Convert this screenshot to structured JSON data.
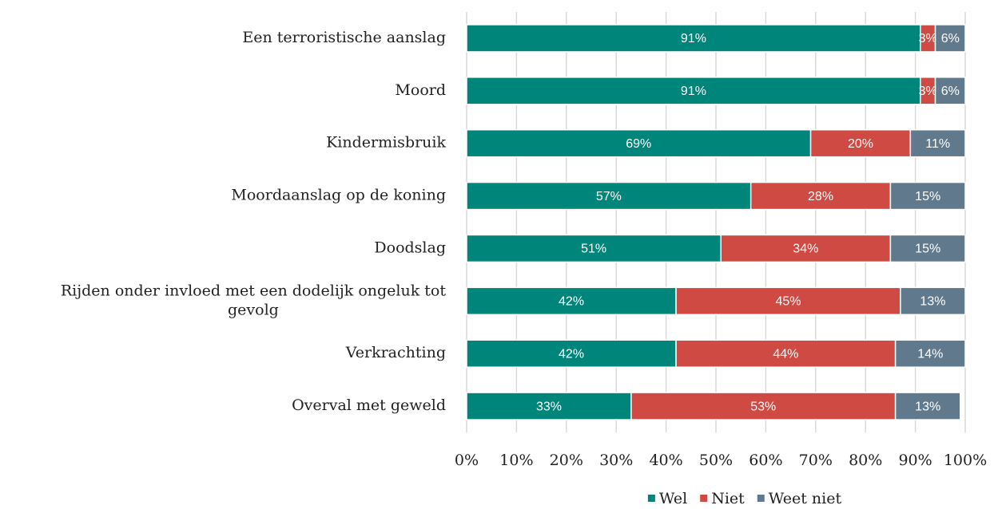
{
  "chart_data": {
    "type": "stacked-barh",
    "categories": [
      "Een terroristische aanslag",
      "Moord",
      "Kindermisbruik",
      "Moordaanslag op de koning",
      "Doodslag",
      "Rijden onder invloed met een dodelijk ongeluk tot gevolg",
      "Verkrachting",
      "Overval met geweld"
    ],
    "series": [
      {
        "name": "Wel",
        "color": "#00857a",
        "values": [
          91,
          91,
          69,
          57,
          51,
          42,
          42,
          33
        ],
        "value_labels": [
          "91%",
          "91%",
          "69%",
          "57%",
          "51%",
          "42%",
          "42%",
          "33%"
        ]
      },
      {
        "name": "Niet",
        "color": "#cf4a43",
        "values": [
          3,
          3,
          20,
          28,
          34,
          45,
          44,
          53
        ],
        "value_labels": [
          "3%",
          "3%",
          "20%",
          "28%",
          "34%",
          "45%",
          "44%",
          "53%"
        ]
      },
      {
        "name": "Weet niet",
        "color": "#61798c",
        "values": [
          6,
          6,
          11,
          15,
          15,
          13,
          14,
          13
        ],
        "value_labels": [
          "6%",
          "6%",
          "11%",
          "15%",
          "15%",
          "13%",
          "14%",
          "13%"
        ]
      }
    ],
    "xlim": [
      0,
      100
    ],
    "xticks": [
      {
        "value": 0,
        "label": "0%"
      },
      {
        "value": 10,
        "label": "10%"
      },
      {
        "value": 20,
        "label": "20%"
      },
      {
        "value": 30,
        "label": "30%"
      },
      {
        "value": 40,
        "label": "40%"
      },
      {
        "value": 50,
        "label": "50%"
      },
      {
        "value": 60,
        "label": "60%"
      },
      {
        "value": 70,
        "label": "70%"
      },
      {
        "value": 80,
        "label": "80%"
      },
      {
        "value": 90,
        "label": "90%"
      },
      {
        "value": 100,
        "label": "100%"
      }
    ],
    "grid": true,
    "legend": "bottom"
  }
}
